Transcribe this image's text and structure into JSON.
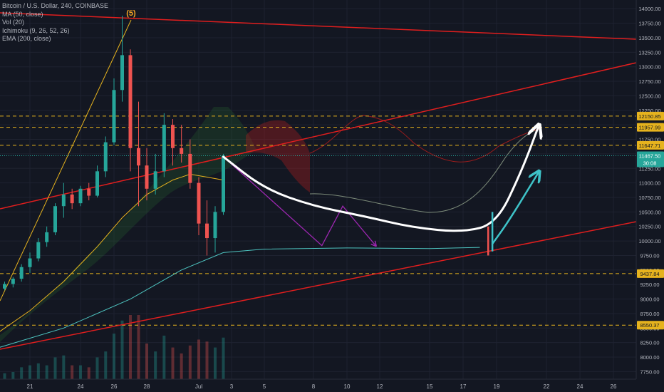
{
  "legend": {
    "symbol_line": "Bitcoin / U.S. Dollar, 240, COINBASE",
    "ma": "MA (50, close)",
    "vol": "Vol (20)",
    "ichimoku": "Ichimoku (9, 26, 52, 26)",
    "ema": "EMA (200, close)"
  },
  "colors": {
    "background": "#131722",
    "up": "#26a69a",
    "down": "#ef5350",
    "trendline": "#e01e1e",
    "dashed_level": "#e6b31e",
    "ma": "#e6b31e",
    "ema": "#4ec5c1",
    "projection_white": "#ffffff",
    "projection_cyan": "#3ec3c8",
    "projection_purple": "#9c27b0",
    "wave_label": "#f5a623"
  },
  "annotations": {
    "wave_label": "(5)",
    "last_price_countdown": "30:08"
  },
  "chart_data": {
    "type": "candlestick",
    "title": "",
    "timeframe": "240",
    "x_ticks": [
      "21",
      "24",
      "26",
      "28",
      "Jul",
      "3",
      "5",
      "8",
      "10",
      "12",
      "15",
      "17",
      "19",
      "22",
      "24",
      "26"
    ],
    "y_ticks": [
      7750,
      8000,
      8250,
      8500,
      8750,
      9000,
      9250,
      9500,
      9750,
      10000,
      10250,
      10500,
      10750,
      11000,
      11250,
      11500,
      11750,
      12000,
      12250,
      12500,
      12750,
      13000,
      13250,
      13500,
      13750,
      14000
    ],
    "ylim": [
      7620,
      14150
    ],
    "horizontal_levels": [
      {
        "price": 12150.85,
        "label": "12150.85"
      },
      {
        "price": 11957.99,
        "label": "11957.99"
      },
      {
        "price": 11647.71,
        "label": "11647.71"
      },
      {
        "price": 9437.84,
        "label": "9437.84"
      },
      {
        "price": 8550.37,
        "label": "8550.37"
      }
    ],
    "last_price": {
      "price": 11467.5,
      "label": "11467.50"
    },
    "candles": [
      {
        "x": "06-19 00:00",
        "o": 9200,
        "h": 9280,
        "l": 9120,
        "c": 9180
      },
      {
        "x": "06-19 12:00",
        "o": 9180,
        "h": 9300,
        "l": 9150,
        "c": 9260
      },
      {
        "x": "06-20 00:00",
        "o": 9260,
        "h": 9380,
        "l": 9200,
        "c": 9350
      },
      {
        "x": "06-20 12:00",
        "o": 9350,
        "h": 9600,
        "l": 9300,
        "c": 9550
      },
      {
        "x": "06-21 00:00",
        "o": 9550,
        "h": 9800,
        "l": 9450,
        "c": 9700
      },
      {
        "x": "06-21 12:00",
        "o": 9700,
        "h": 10050,
        "l": 9650,
        "c": 9980
      },
      {
        "x": "06-22 00:00",
        "o": 9980,
        "h": 10250,
        "l": 9900,
        "c": 10150
      },
      {
        "x": "06-22 12:00",
        "o": 10150,
        "h": 10650,
        "l": 10100,
        "c": 10600
      },
      {
        "x": "06-23 00:00",
        "o": 10600,
        "h": 11000,
        "l": 10400,
        "c": 10800
      },
      {
        "x": "06-23 12:00",
        "o": 10800,
        "h": 10900,
        "l": 10550,
        "c": 10650
      },
      {
        "x": "06-24 00:00",
        "o": 10650,
        "h": 10950,
        "l": 10600,
        "c": 10900
      },
      {
        "x": "06-24 12:00",
        "o": 10900,
        "h": 11000,
        "l": 10700,
        "c": 10780
      },
      {
        "x": "06-25 00:00",
        "o": 10780,
        "h": 11300,
        "l": 10750,
        "c": 11200
      },
      {
        "x": "06-25 12:00",
        "o": 11200,
        "h": 11800,
        "l": 11100,
        "c": 11700
      },
      {
        "x": "06-26 00:00",
        "o": 11700,
        "h": 12800,
        "l": 11650,
        "c": 12600
      },
      {
        "x": "06-26 12:00",
        "o": 12600,
        "h": 13880,
        "l": 12400,
        "c": 13200
      },
      {
        "x": "06-27 00:00",
        "o": 13200,
        "h": 13300,
        "l": 11200,
        "c": 11600
      },
      {
        "x": "06-27 12:00",
        "o": 11600,
        "h": 12400,
        "l": 10600,
        "c": 11300
      },
      {
        "x": "06-28 00:00",
        "o": 11300,
        "h": 11600,
        "l": 10700,
        "c": 10900
      },
      {
        "x": "06-28 12:00",
        "o": 10900,
        "h": 11500,
        "l": 10800,
        "c": 11200
      },
      {
        "x": "06-29 00:00",
        "o": 11200,
        "h": 12200,
        "l": 11100,
        "c": 12000
      },
      {
        "x": "06-29 12:00",
        "o": 12000,
        "h": 12100,
        "l": 11300,
        "c": 11600
      },
      {
        "x": "06-30 00:00",
        "o": 11600,
        "h": 12000,
        "l": 11350,
        "c": 11500
      },
      {
        "x": "06-30 12:00",
        "o": 11500,
        "h": 11750,
        "l": 10900,
        "c": 11000
      },
      {
        "x": "07-01 00:00",
        "o": 11000,
        "h": 11100,
        "l": 10100,
        "c": 10300
      },
      {
        "x": "07-01 12:00",
        "o": 10300,
        "h": 10700,
        "l": 9750,
        "c": 10050
      },
      {
        "x": "07-02 00:00",
        "o": 10050,
        "h": 10600,
        "l": 9800,
        "c": 10500
      },
      {
        "x": "07-02 12:00",
        "o": 10500,
        "h": 11500,
        "l": 10450,
        "c": 11467.5
      }
    ],
    "series": [
      {
        "name": "MA (50, close)",
        "x": [
          "06-19 00:00",
          "06-21 00:00",
          "06-23 00:00",
          "06-25 00:00",
          "06-26 12:00",
          "06-28 00:00",
          "06-29 12:00",
          "06-30 12:00",
          "07-01 12:00",
          "07-02 12:00"
        ],
        "y": [
          8400,
          8800,
          9300,
          9900,
          10400,
          10800,
          11050,
          11150,
          11100,
          11050
        ]
      },
      {
        "name": "EMA (200, close)",
        "x": [
          "06-19 00:00",
          "06-23 00:00",
          "06-27 00:00",
          "06-30 00:00",
          "07-02 12:00",
          "07-05 00:00",
          "07-10 00:00",
          "07-15 00:00",
          "07-18 00:00"
        ],
        "y": [
          8150,
          8500,
          9000,
          9500,
          9800,
          9860,
          9880,
          9870,
          9890
        ]
      }
    ],
    "projection": {
      "white_path": [
        [
          "07-02 12:00",
          11450
        ],
        [
          "07-05 00:00",
          10900
        ],
        [
          "07-08 00:00",
          10600
        ],
        [
          "07-11 00:00",
          10430
        ],
        [
          "07-14 00:00",
          10230
        ],
        [
          "07-17 00:00",
          10150
        ],
        [
          "07-19 00:00",
          10300
        ],
        [
          "07-20 12:00",
          11200
        ],
        [
          "07-21 12:00",
          11957.99
        ]
      ],
      "cyan_path": [
        [
          "07-18 18:00",
          9950
        ],
        [
          "07-19 18:00",
          10350
        ],
        [
          "07-21 12:00",
          11170
        ]
      ],
      "purple_path": [
        [
          "07-02 12:00",
          11450
        ],
        [
          "07-08 12:00",
          9920
        ],
        [
          "07-09 18:00",
          10600
        ],
        [
          "07-11 18:00",
          9920
        ]
      ]
    },
    "xlabel": "",
    "ylabel": ""
  }
}
